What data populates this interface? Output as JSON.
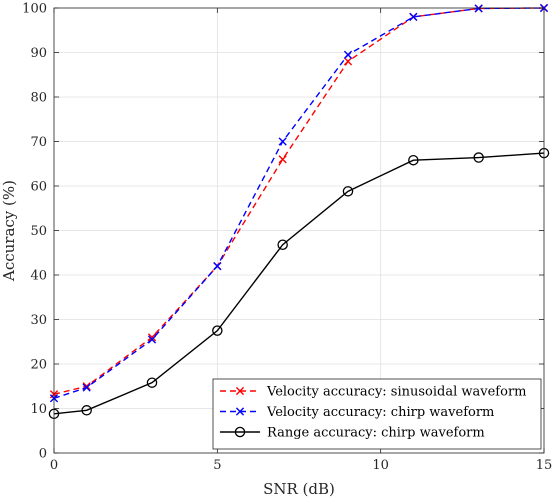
{
  "chart_data": {
    "type": "line",
    "xlabel": "SNR (dB)",
    "ylabel": "Accuracy (%)",
    "xlim": [
      0,
      15
    ],
    "ylim": [
      0,
      100
    ],
    "xticks": [
      0,
      5,
      10,
      15
    ],
    "yticks": [
      0,
      10,
      20,
      30,
      40,
      50,
      60,
      70,
      80,
      90,
      100
    ],
    "grid": true,
    "legend_position": "bottom-right",
    "series": [
      {
        "name": "Velocity accuracy: sinusoidal waveform",
        "color": "#ff0000",
        "line_style": "dashed",
        "marker": "x",
        "x": [
          0,
          1,
          3,
          5,
          7,
          9,
          11,
          13,
          15
        ],
        "y": [
          13.2,
          15.0,
          26.0,
          42.0,
          66.0,
          88.0,
          98.0,
          99.9,
          100.0
        ]
      },
      {
        "name": "Velocity accuracy: chirp waveform",
        "color": "#0000ff",
        "line_style": "dashed",
        "marker": "x",
        "x": [
          0,
          1,
          3,
          5,
          7,
          9,
          11,
          13,
          15
        ],
        "y": [
          12.3,
          14.7,
          25.5,
          42.0,
          70.0,
          89.5,
          98.0,
          99.9,
          100.0
        ]
      },
      {
        "name": "Range accuracy: chirp waveform",
        "color": "#000000",
        "line_style": "solid",
        "marker": "o",
        "x": [
          0,
          1,
          3,
          5,
          7,
          9,
          11,
          13,
          15
        ],
        "y": [
          8.8,
          9.6,
          15.8,
          27.5,
          46.8,
          58.8,
          65.8,
          66.4,
          67.4
        ]
      }
    ]
  }
}
